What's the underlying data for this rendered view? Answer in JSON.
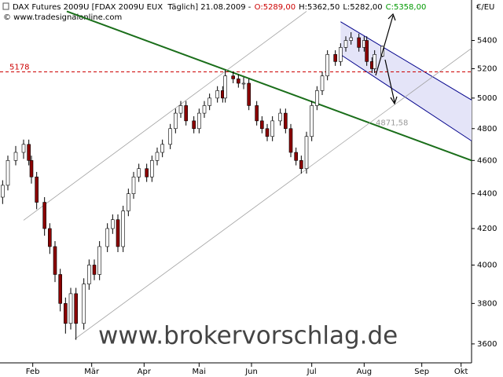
{
  "chart_data": {
    "type": "candlestick",
    "header": [
      "DAX Futures 2009U [FDAX 2009U EUX  Täglich] 21.08.2009 -",
      "O:5289,00",
      "H:5362,50",
      "L:5282,00",
      "C:5358,00"
    ],
    "header_colors": [
      "#000000",
      "#cc0000",
      "#000000",
      "#000000",
      "#009900"
    ],
    "copyright": "© www.tradesignalonline.com",
    "unit": "€/EU",
    "watermark": "www.brokervorschlag.de",
    "log_scale": true,
    "xlim": [
      0,
      180
    ],
    "xticks": [
      {
        "value": 12.5,
        "label": "Feb"
      },
      {
        "value": 35,
        "label": "Mär"
      },
      {
        "value": 55,
        "label": "Apr"
      },
      {
        "value": 76,
        "label": "Mai"
      },
      {
        "value": 96,
        "label": "Jun"
      },
      {
        "value": 119,
        "label": "Jul"
      },
      {
        "value": 139,
        "label": "Aug"
      },
      {
        "value": 161,
        "label": "Sep"
      },
      {
        "value": 176,
        "label": "Okt"
      }
    ],
    "ylim": [
      3510,
      5700
    ],
    "yticks": [
      3600,
      3800,
      4000,
      4200,
      4400,
      4600,
      4800,
      5000,
      5200,
      5400
    ],
    "up_color": "#ffffff",
    "down_color": "#8b0000",
    "x": [
      1,
      3,
      6,
      9,
      11,
      12,
      14,
      17,
      19,
      21,
      23,
      25,
      27,
      29,
      32,
      34,
      36,
      38,
      41,
      43,
      45,
      47,
      49,
      51,
      53,
      56,
      58,
      60,
      62,
      65,
      67,
      69,
      71,
      74,
      76,
      78,
      80,
      83,
      85,
      86,
      89,
      91,
      93,
      95,
      98,
      100,
      102,
      104,
      107,
      109,
      111,
      113,
      115,
      117,
      119,
      121,
      123,
      125,
      128,
      130,
      132,
      134,
      137,
      139,
      140,
      142,
      143,
      146
    ],
    "open": [
      4380,
      4450,
      4600,
      4650,
      4700,
      4600,
      4500,
      4350,
      4200,
      4100,
      3950,
      3800,
      3700,
      3850,
      3700,
      3900,
      4000,
      3950,
      4100,
      4200,
      4250,
      4100,
      4300,
      4400,
      4500,
      4550,
      4500,
      4600,
      4650,
      4700,
      4800,
      4900,
      4950,
      4850,
      4800,
      4900,
      4950,
      5000,
      5050,
      5000,
      5150,
      5130,
      5100,
      5100,
      4950,
      4850,
      4800,
      4750,
      4850,
      4900,
      4800,
      4650,
      4600,
      4550,
      4750,
      4950,
      5050,
      5150,
      5300,
      5250,
      5350,
      5400,
      5420,
      5350,
      5400,
      5250,
      5200,
      5289
    ],
    "high": [
      4480,
      4630,
      4690,
      4730,
      4730,
      4630,
      4530,
      4380,
      4230,
      4130,
      3980,
      3830,
      3880,
      3880,
      3930,
      4030,
      4030,
      4130,
      4230,
      4280,
      4280,
      4330,
      4430,
      4530,
      4580,
      4580,
      4630,
      4680,
      4730,
      4830,
      4930,
      4980,
      4980,
      4880,
      4930,
      4980,
      5030,
      5080,
      5080,
      5190,
      5180,
      5160,
      5140,
      5130,
      4980,
      4880,
      4830,
      4880,
      4930,
      4930,
      4830,
      4680,
      4630,
      4780,
      4980,
      5080,
      5180,
      5330,
      5330,
      5380,
      5430,
      5460,
      5450,
      5430,
      5430,
      5280,
      5330,
      5362.5
    ],
    "low": [
      4340,
      4420,
      4570,
      4610,
      4570,
      4460,
      4310,
      4160,
      4060,
      3910,
      3760,
      3650,
      3670,
      3620,
      3670,
      3870,
      3920,
      3920,
      4070,
      4170,
      4070,
      4070,
      4270,
      4370,
      4470,
      4470,
      4470,
      4570,
      4620,
      4670,
      4770,
      4870,
      4820,
      4770,
      4770,
      4870,
      4920,
      4970,
      4970,
      4970,
      5100,
      5070,
      5060,
      4920,
      4820,
      4770,
      4720,
      4720,
      4820,
      4770,
      4620,
      4570,
      4520,
      4520,
      4720,
      4920,
      5020,
      5120,
      5220,
      5220,
      5320,
      5370,
      5320,
      5320,
      5220,
      5170,
      5170,
      5282
    ],
    "close": [
      4450,
      4600,
      4650,
      4700,
      4600,
      4500,
      4350,
      4200,
      4100,
      3950,
      3800,
      3700,
      3850,
      3700,
      3900,
      4000,
      3950,
      4100,
      4200,
      4250,
      4100,
      4300,
      4400,
      4500,
      4550,
      4500,
      4600,
      4650,
      4700,
      4800,
      4900,
      4950,
      4850,
      4800,
      4900,
      4950,
      5000,
      5050,
      5000,
      5150,
      5130,
      5100,
      5100,
      4950,
      4850,
      4800,
      4750,
      4850,
      4900,
      4800,
      4650,
      4600,
      4550,
      4750,
      4950,
      5050,
      5150,
      5300,
      5250,
      5350,
      5400,
      5420,
      5350,
      5400,
      5250,
      5200,
      5300,
      5358
    ],
    "lines": [
      {
        "color": "#1a6e1a",
        "points": [
          [
            25.5,
            5614
          ],
          [
            180,
            4600
          ]
        ]
      },
      {
        "color": "#a0a0a0",
        "points": [
          [
            9,
            4247
          ],
          [
            117,
            5614
          ]
        ]
      },
      {
        "color": "#a0a0a0",
        "points": [
          [
            28.5,
            3623
          ],
          [
            180,
            5344
          ]
        ]
      }
    ],
    "channel": {
      "color": "#00008b",
      "fill": "#e4e4f8",
      "upper": [
        [
          130,
          5537
        ],
        [
          180,
          4987
        ]
      ],
      "lower": [
        [
          130,
          5299
        ],
        [
          180,
          4722
        ]
      ]
    },
    "level": {
      "value": 5178,
      "color": "#cc0000"
    },
    "annotation": {
      "x": 141,
      "value": 4871.58,
      "label": "4871,58"
    }
  }
}
